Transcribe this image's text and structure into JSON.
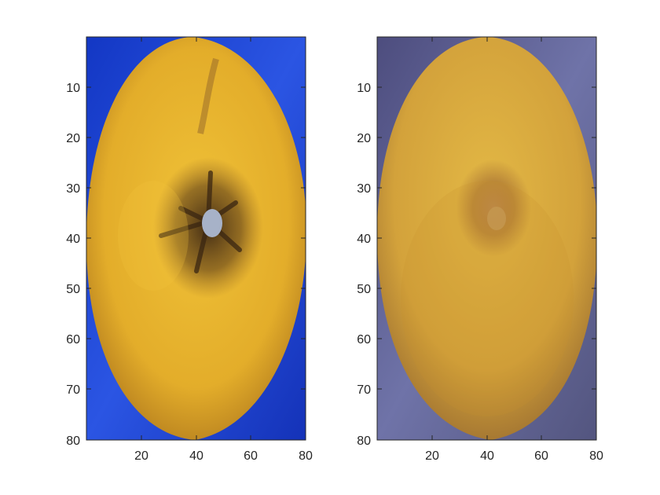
{
  "panels": [
    {
      "name": "left-panel",
      "subject": "lemon with dark radial lesion, blue background",
      "x_ticks": [
        "20",
        "40",
        "60",
        "80"
      ],
      "y_ticks": [
        "10",
        "20",
        "30",
        "40",
        "50",
        "60",
        "70",
        "80"
      ],
      "colors": {
        "background": "#1e3fd0",
        "fruit": "#e6b12c",
        "fruit_dark": "#b07a1a",
        "lesion": "#3a2512",
        "core": "#a7b2c8"
      }
    },
    {
      "name": "right-panel",
      "subject": "lemon with faint blurred spot, purple-grey background",
      "x_ticks": [
        "20",
        "40",
        "60",
        "80"
      ],
      "y_ticks": [
        "10",
        "20",
        "30",
        "40",
        "50",
        "60",
        "70",
        "80"
      ],
      "colors": {
        "background": "#5d5f93",
        "fruit": "#d9ad3a",
        "fruit_dark": "#a8772a",
        "lesion": "#8a5a2c",
        "core": "#c49a5a"
      }
    }
  ]
}
